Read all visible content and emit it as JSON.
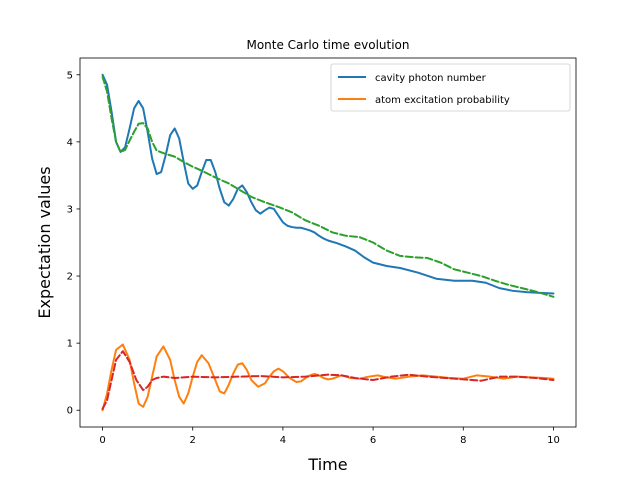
{
  "chart_data": {
    "type": "line",
    "title": "Monte Carlo time evolution",
    "xlabel": "Time",
    "ylabel": "Expectation values",
    "xlim": [
      -0.5,
      10.5
    ],
    "ylim": [
      -0.25,
      5.25
    ],
    "xticks": [
      0,
      2,
      4,
      6,
      8,
      10
    ],
    "yticks": [
      0,
      1,
      2,
      3,
      4,
      5
    ],
    "xtick_labels": [
      "0",
      "2",
      "4",
      "6",
      "8",
      "10"
    ],
    "ytick_labels": [
      "0",
      "1",
      "2",
      "3",
      "4",
      "5"
    ],
    "grid": false,
    "legend_position": "upper right",
    "series": [
      {
        "name": "cavity photon number",
        "color": "#1f77b4",
        "style": "solid",
        "x": [
          0,
          0.1,
          0.2,
          0.3,
          0.4,
          0.5,
          0.6,
          0.7,
          0.8,
          0.9,
          1.0,
          1.1,
          1.2,
          1.3,
          1.4,
          1.5,
          1.6,
          1.7,
          1.8,
          1.9,
          2.0,
          2.1,
          2.2,
          2.3,
          2.4,
          2.5,
          2.6,
          2.7,
          2.8,
          2.9,
          3.0,
          3.1,
          3.2,
          3.3,
          3.4,
          3.5,
          3.6,
          3.7,
          3.8,
          3.9,
          4.0,
          4.1,
          4.2,
          4.3,
          4.4,
          4.5,
          4.6,
          4.7,
          4.8,
          4.9,
          5.0,
          5.2,
          5.4,
          5.6,
          5.8,
          6.0,
          6.3,
          6.6,
          7.0,
          7.4,
          7.8,
          8.2,
          8.5,
          8.8,
          9.1,
          9.4,
          9.7,
          10.0
        ],
        "y": [
          5.0,
          4.85,
          4.45,
          4.0,
          3.85,
          3.92,
          4.2,
          4.5,
          4.61,
          4.5,
          4.15,
          3.75,
          3.52,
          3.55,
          3.8,
          4.1,
          4.2,
          4.05,
          3.7,
          3.38,
          3.3,
          3.35,
          3.55,
          3.73,
          3.73,
          3.55,
          3.3,
          3.1,
          3.05,
          3.15,
          3.3,
          3.35,
          3.25,
          3.1,
          2.98,
          2.93,
          2.98,
          3.02,
          3.0,
          2.9,
          2.8,
          2.75,
          2.73,
          2.72,
          2.72,
          2.7,
          2.68,
          2.65,
          2.6,
          2.56,
          2.53,
          2.49,
          2.44,
          2.38,
          2.28,
          2.2,
          2.15,
          2.12,
          2.05,
          1.96,
          1.93,
          1.93,
          1.9,
          1.82,
          1.78,
          1.76,
          1.75,
          1.74
        ]
      },
      {
        "name": "atom excitation probability",
        "color": "#ff7f0e",
        "style": "solid",
        "x": [
          0,
          0.1,
          0.2,
          0.3,
          0.45,
          0.6,
          0.7,
          0.8,
          0.9,
          1.0,
          1.1,
          1.2,
          1.35,
          1.5,
          1.6,
          1.7,
          1.8,
          1.9,
          2.0,
          2.1,
          2.2,
          2.35,
          2.5,
          2.6,
          2.7,
          2.8,
          2.9,
          3.0,
          3.1,
          3.2,
          3.3,
          3.45,
          3.6,
          3.7,
          3.8,
          3.9,
          4.0,
          4.15,
          4.3,
          4.4,
          4.5,
          4.6,
          4.7,
          4.8,
          4.9,
          5.0,
          5.1,
          5.3,
          5.5,
          5.7,
          5.9,
          6.1,
          6.3,
          6.5,
          6.8,
          7.1,
          7.4,
          7.7,
          8.0,
          8.3,
          8.6,
          8.9,
          9.2,
          9.5,
          9.8,
          10.0
        ],
        "y": [
          0.0,
          0.25,
          0.6,
          0.9,
          0.98,
          0.75,
          0.4,
          0.1,
          0.05,
          0.2,
          0.5,
          0.8,
          0.95,
          0.75,
          0.45,
          0.2,
          0.1,
          0.25,
          0.5,
          0.72,
          0.82,
          0.7,
          0.45,
          0.28,
          0.25,
          0.38,
          0.55,
          0.68,
          0.7,
          0.6,
          0.45,
          0.35,
          0.4,
          0.5,
          0.58,
          0.62,
          0.58,
          0.48,
          0.42,
          0.43,
          0.48,
          0.52,
          0.54,
          0.52,
          0.48,
          0.46,
          0.47,
          0.52,
          0.48,
          0.47,
          0.5,
          0.52,
          0.49,
          0.47,
          0.5,
          0.52,
          0.5,
          0.48,
          0.47,
          0.52,
          0.5,
          0.47,
          0.5,
          0.49,
          0.48,
          0.47
        ]
      },
      {
        "name": "",
        "color": "#2ca02c",
        "style": "dashed",
        "x": [
          0,
          0.1,
          0.2,
          0.3,
          0.4,
          0.5,
          0.6,
          0.7,
          0.8,
          0.9,
          1.0,
          1.1,
          1.2,
          1.4,
          1.6,
          1.8,
          2.0,
          2.2,
          2.5,
          2.8,
          3.0,
          3.3,
          3.6,
          3.9,
          4.2,
          4.5,
          4.8,
          5.1,
          5.4,
          5.7,
          6.0,
          6.3,
          6.6,
          6.9,
          7.2,
          7.5,
          7.8,
          8.1,
          8.4,
          8.7,
          9.0,
          9.3,
          9.6,
          10.0
        ],
        "y": [
          4.97,
          4.75,
          4.35,
          4.0,
          3.85,
          3.88,
          4.02,
          4.15,
          4.27,
          4.28,
          4.2,
          4.0,
          3.87,
          3.82,
          3.78,
          3.7,
          3.63,
          3.57,
          3.47,
          3.38,
          3.3,
          3.18,
          3.1,
          3.03,
          2.95,
          2.83,
          2.75,
          2.65,
          2.6,
          2.58,
          2.5,
          2.38,
          2.3,
          2.28,
          2.27,
          2.2,
          2.1,
          2.05,
          2.0,
          1.93,
          1.87,
          1.82,
          1.77,
          1.69
        ]
      },
      {
        "name": "",
        "color": "#d62728",
        "style": "dashed",
        "x": [
          0,
          0.1,
          0.2,
          0.3,
          0.45,
          0.6,
          0.75,
          0.9,
          1.0,
          1.1,
          1.2,
          1.35,
          1.6,
          2.0,
          2.5,
          3.0,
          3.5,
          4.0,
          4.5,
          5.0,
          5.3,
          5.6,
          6.0,
          6.4,
          6.8,
          7.2,
          7.6,
          8.0,
          8.4,
          8.8,
          9.2,
          9.6,
          10.0
        ],
        "y": [
          0.02,
          0.15,
          0.45,
          0.75,
          0.88,
          0.72,
          0.45,
          0.3,
          0.35,
          0.45,
          0.48,
          0.5,
          0.48,
          0.5,
          0.49,
          0.5,
          0.51,
          0.49,
          0.5,
          0.53,
          0.52,
          0.48,
          0.45,
          0.5,
          0.53,
          0.5,
          0.48,
          0.46,
          0.44,
          0.5,
          0.5,
          0.48,
          0.45
        ]
      }
    ]
  }
}
